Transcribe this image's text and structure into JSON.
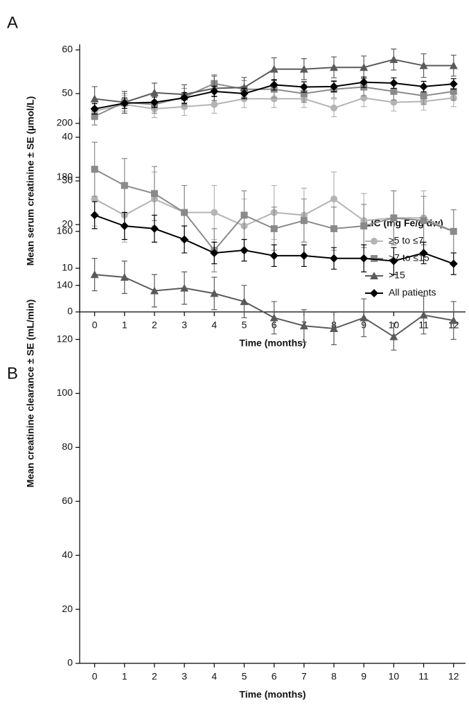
{
  "chart_data": [
    {
      "type": "line",
      "panel": "A",
      "x_label": "Time (months)",
      "y_label": "Mean serum creatinine ± SE (µmol/L)",
      "legend_title": "LIC (mg Fe/g dw)",
      "legend": "right",
      "x": [
        0,
        1,
        2,
        3,
        4,
        5,
        6,
        7,
        8,
        9,
        10,
        11,
        12
      ],
      "xlim": [
        -0.5,
        12.4
      ],
      "xticks": [
        0,
        1,
        2,
        3,
        4,
        5,
        6,
        7,
        8,
        9,
        10,
        11,
        12
      ],
      "ylim": [
        0,
        60
      ],
      "yticks": [
        0,
        10,
        20,
        30,
        40,
        50,
        60
      ],
      "series": [
        {
          "name": "≥5 to ≤7",
          "color": "#b4b4b4",
          "marker": "circle",
          "values": [
            46,
            47.5,
            46.5,
            47,
            47.5,
            48.8,
            48.8,
            48.8,
            46.7,
            49,
            48,
            48.2,
            49
          ],
          "errors": [
            2,
            2,
            2,
            2,
            2,
            2,
            2,
            2,
            2,
            2,
            2,
            2,
            2
          ]
        },
        {
          "name": ">7 to ≤15",
          "color": "#8a8a8a",
          "marker": "square",
          "values": [
            44.8,
            48,
            47.5,
            49.2,
            52.3,
            51,
            51,
            50,
            51,
            51.5,
            50.5,
            49.5,
            50.5
          ],
          "errors": [
            2,
            2,
            2,
            2,
            2,
            2,
            2,
            2,
            2,
            2,
            2,
            2,
            2
          ]
        },
        {
          "name": ">15",
          "color": "#5a5a5a",
          "marker": "triangle",
          "values": [
            48.8,
            48,
            50.2,
            49.8,
            51.2,
            51.4,
            55.6,
            55.6,
            56,
            56,
            57.8,
            56.4,
            56.4
          ],
          "errors": [
            2.8,
            2.5,
            2.2,
            2.2,
            2.8,
            2.3,
            2.6,
            2.4,
            2.4,
            2.6,
            2.4,
            2.7,
            2.4
          ]
        },
        {
          "name": "All patients",
          "color": "#000000",
          "marker": "diamond",
          "values": [
            46.5,
            47.8,
            48,
            49,
            50.5,
            50,
            52,
            51.5,
            51.6,
            52.6,
            52.4,
            51.6,
            52.2
          ],
          "errors": [
            1.2,
            1.2,
            1.2,
            1.2,
            1.2,
            1.2,
            1.2,
            1.2,
            1.2,
            1.2,
            1.2,
            1.2,
            1.2
          ]
        }
      ]
    },
    {
      "type": "line",
      "panel": "B",
      "x_label": "Time (months)",
      "y_label": "Mean creatinine clearance ± SE (mL/min)",
      "x": [
        0,
        1,
        2,
        3,
        4,
        5,
        6,
        7,
        8,
        9,
        10,
        11,
        12
      ],
      "xlim": [
        -0.5,
        12.4
      ],
      "xticks": [
        0,
        1,
        2,
        3,
        4,
        5,
        6,
        7,
        8,
        9,
        10,
        11,
        12
      ],
      "ylim": [
        0,
        200
      ],
      "yticks": [
        0,
        20,
        40,
        60,
        80,
        100,
        120,
        140,
        160,
        180,
        200
      ],
      "series": [
        {
          "color": "#b4b4b4",
          "marker": "circle",
          "values": [
            172,
            166,
            172,
            167,
            167,
            162,
            167,
            166,
            172,
            164,
            165,
            165,
            160
          ],
          "errors": [
            10,
            10,
            10,
            10,
            10,
            10,
            10,
            10,
            10,
            10,
            10,
            10,
            8
          ]
        },
        {
          "color": "#8a8a8a",
          "marker": "square",
          "values": [
            183,
            177,
            174,
            167,
            153,
            166,
            161,
            164,
            161,
            162,
            165,
            164,
            160
          ],
          "errors": [
            10,
            10,
            10,
            10,
            8,
            9,
            8,
            8,
            8,
            8,
            10,
            9,
            8
          ]
        },
        {
          "color": "#5a5a5a",
          "marker": "triangle",
          "values": [
            144,
            143,
            138,
            139,
            137,
            134,
            128,
            125,
            124,
            128,
            121,
            129,
            127
          ],
          "errors": [
            6,
            6,
            6,
            6,
            6,
            6,
            6,
            6,
            6,
            7,
            5,
            7,
            7
          ]
        },
        {
          "color": "#000000",
          "marker": "diamond",
          "values": [
            166,
            162,
            161,
            157,
            152,
            153,
            151,
            151,
            150,
            150,
            149,
            152,
            148
          ],
          "errors": [
            5,
            5,
            5,
            5,
            4,
            4,
            4,
            4,
            4,
            5,
            5,
            4,
            4
          ]
        }
      ]
    }
  ]
}
